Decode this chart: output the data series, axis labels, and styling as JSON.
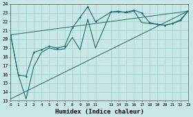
{
  "xlabel": "Humidex (Indice chaleur)",
  "bg_color": "#c8e8e8",
  "grid_color": "#aad4d4",
  "line_color": "#1e6b6b",
  "xlim": [
    0,
    23
  ],
  "ylim": [
    13,
    24
  ],
  "xtick_pos": [
    0,
    1,
    2,
    3,
    4,
    5,
    6,
    7,
    8,
    9,
    10,
    11,
    13,
    14,
    15,
    16,
    17,
    18,
    19,
    20,
    21,
    22,
    23
  ],
  "xtick_labels": [
    "0",
    "1",
    "2",
    "3",
    "4",
    "5",
    "6",
    "7",
    "8",
    "9",
    "10",
    "11",
    "13",
    "14",
    "15",
    "16",
    "17",
    "18",
    "19",
    "20",
    "21",
    "22",
    "23"
  ],
  "ytick_values": [
    13,
    14,
    15,
    16,
    17,
    18,
    19,
    20,
    21,
    22,
    23,
    24
  ],
  "line1_x": [
    0,
    1,
    2,
    3,
    4,
    5,
    6,
    7,
    8,
    9,
    10,
    11,
    13,
    14,
    15,
    16,
    17,
    18,
    19,
    20,
    21,
    22,
    23
  ],
  "line1_y": [
    20.5,
    15.9,
    15.8,
    18.5,
    18.8,
    19.2,
    19.0,
    19.2,
    21.3,
    22.5,
    23.7,
    22.0,
    23.1,
    23.1,
    23.1,
    23.3,
    23.0,
    21.9,
    21.7,
    21.6,
    21.8,
    22.2,
    23.2
  ],
  "line2_x": [
    0,
    1,
    2,
    3,
    4,
    5,
    6,
    7,
    8,
    9,
    10,
    11,
    13,
    14,
    15,
    16,
    17,
    18,
    19,
    20,
    21,
    22,
    23
  ],
  "line2_y": [
    20.5,
    15.9,
    13.2,
    16.9,
    18.5,
    19.0,
    18.8,
    18.9,
    20.2,
    18.8,
    22.3,
    19.0,
    23.1,
    23.2,
    23.0,
    23.2,
    21.9,
    21.8,
    21.7,
    21.6,
    21.8,
    22.1,
    23.2
  ],
  "line3_x": [
    0,
    23
  ],
  "line3_y": [
    20.5,
    23.2
  ],
  "line4_x": [
    0,
    23
  ],
  "line4_y": [
    13.2,
    23.2
  ]
}
